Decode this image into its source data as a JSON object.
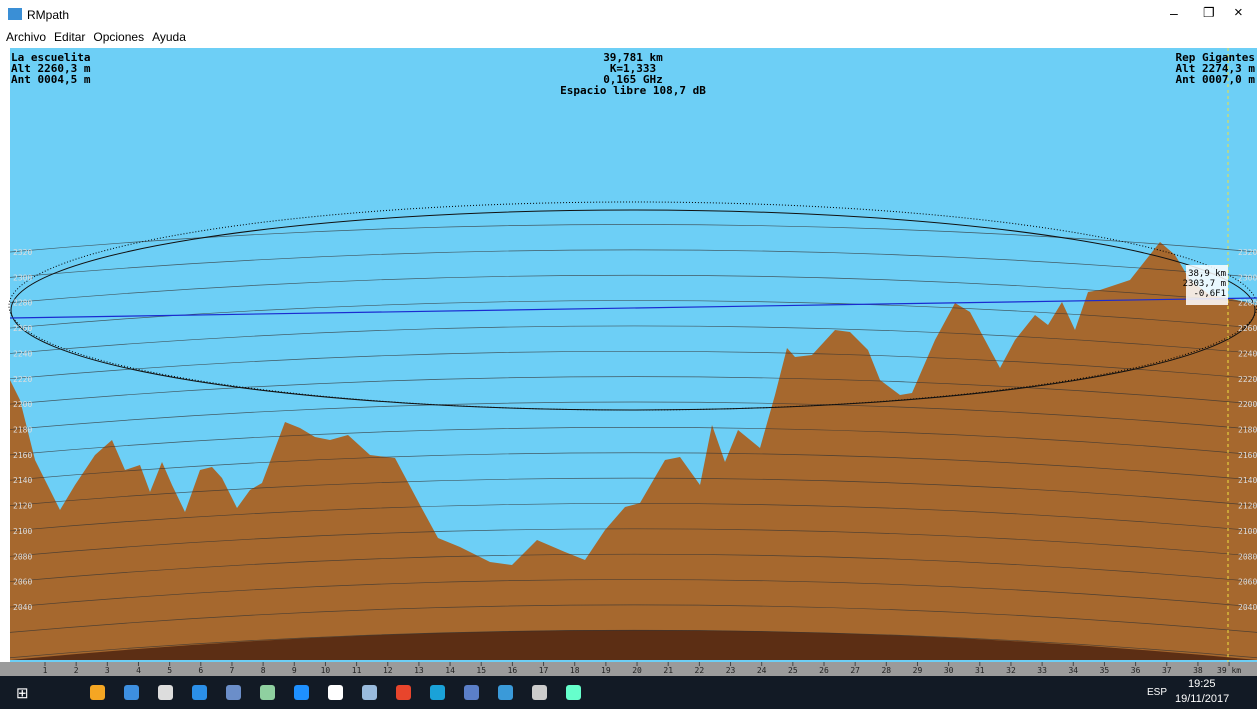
{
  "window": {
    "title": "RMpath",
    "menu": [
      "Archivo",
      "Editar",
      "Opciones",
      "Ayuda"
    ]
  },
  "left_station": [
    "La escuelita",
    "Alt 2260,3 m",
    "Ant 0004,5 m"
  ],
  "center_info": [
    "39,781 km",
    "K=1,333",
    "0,165 GHz",
    "Espacio libre 108,7 dB"
  ],
  "right_station": [
    "Rep Gigantes",
    "Alt 2274,3 m",
    "Ant 0007,0 m"
  ],
  "cursor_tooltip": [
    "38,9 km",
    "2303,7 m",
    "-0,6F1"
  ],
  "altitude_labels": [
    "2320",
    "2300",
    "2280",
    "2260",
    "2240",
    "2220",
    "2200",
    "2180",
    "2160",
    "2140",
    "2120",
    "2100",
    "2080",
    "2060",
    "2040"
  ],
  "km_labels": [
    "1",
    "2",
    "3",
    "4",
    "5",
    "6",
    "7",
    "8",
    "9",
    "10",
    "11",
    "12",
    "13",
    "14",
    "15",
    "16",
    "17",
    "18",
    "19",
    "20",
    "21",
    "22",
    "23",
    "24",
    "25",
    "26",
    "27",
    "28",
    "29",
    "30",
    "31",
    "32",
    "33",
    "34",
    "35",
    "36",
    "37",
    "38",
    "39 km"
  ],
  "taskbar": {
    "language": "ESP",
    "time": "19:25",
    "date": "19/11/2017"
  }
}
